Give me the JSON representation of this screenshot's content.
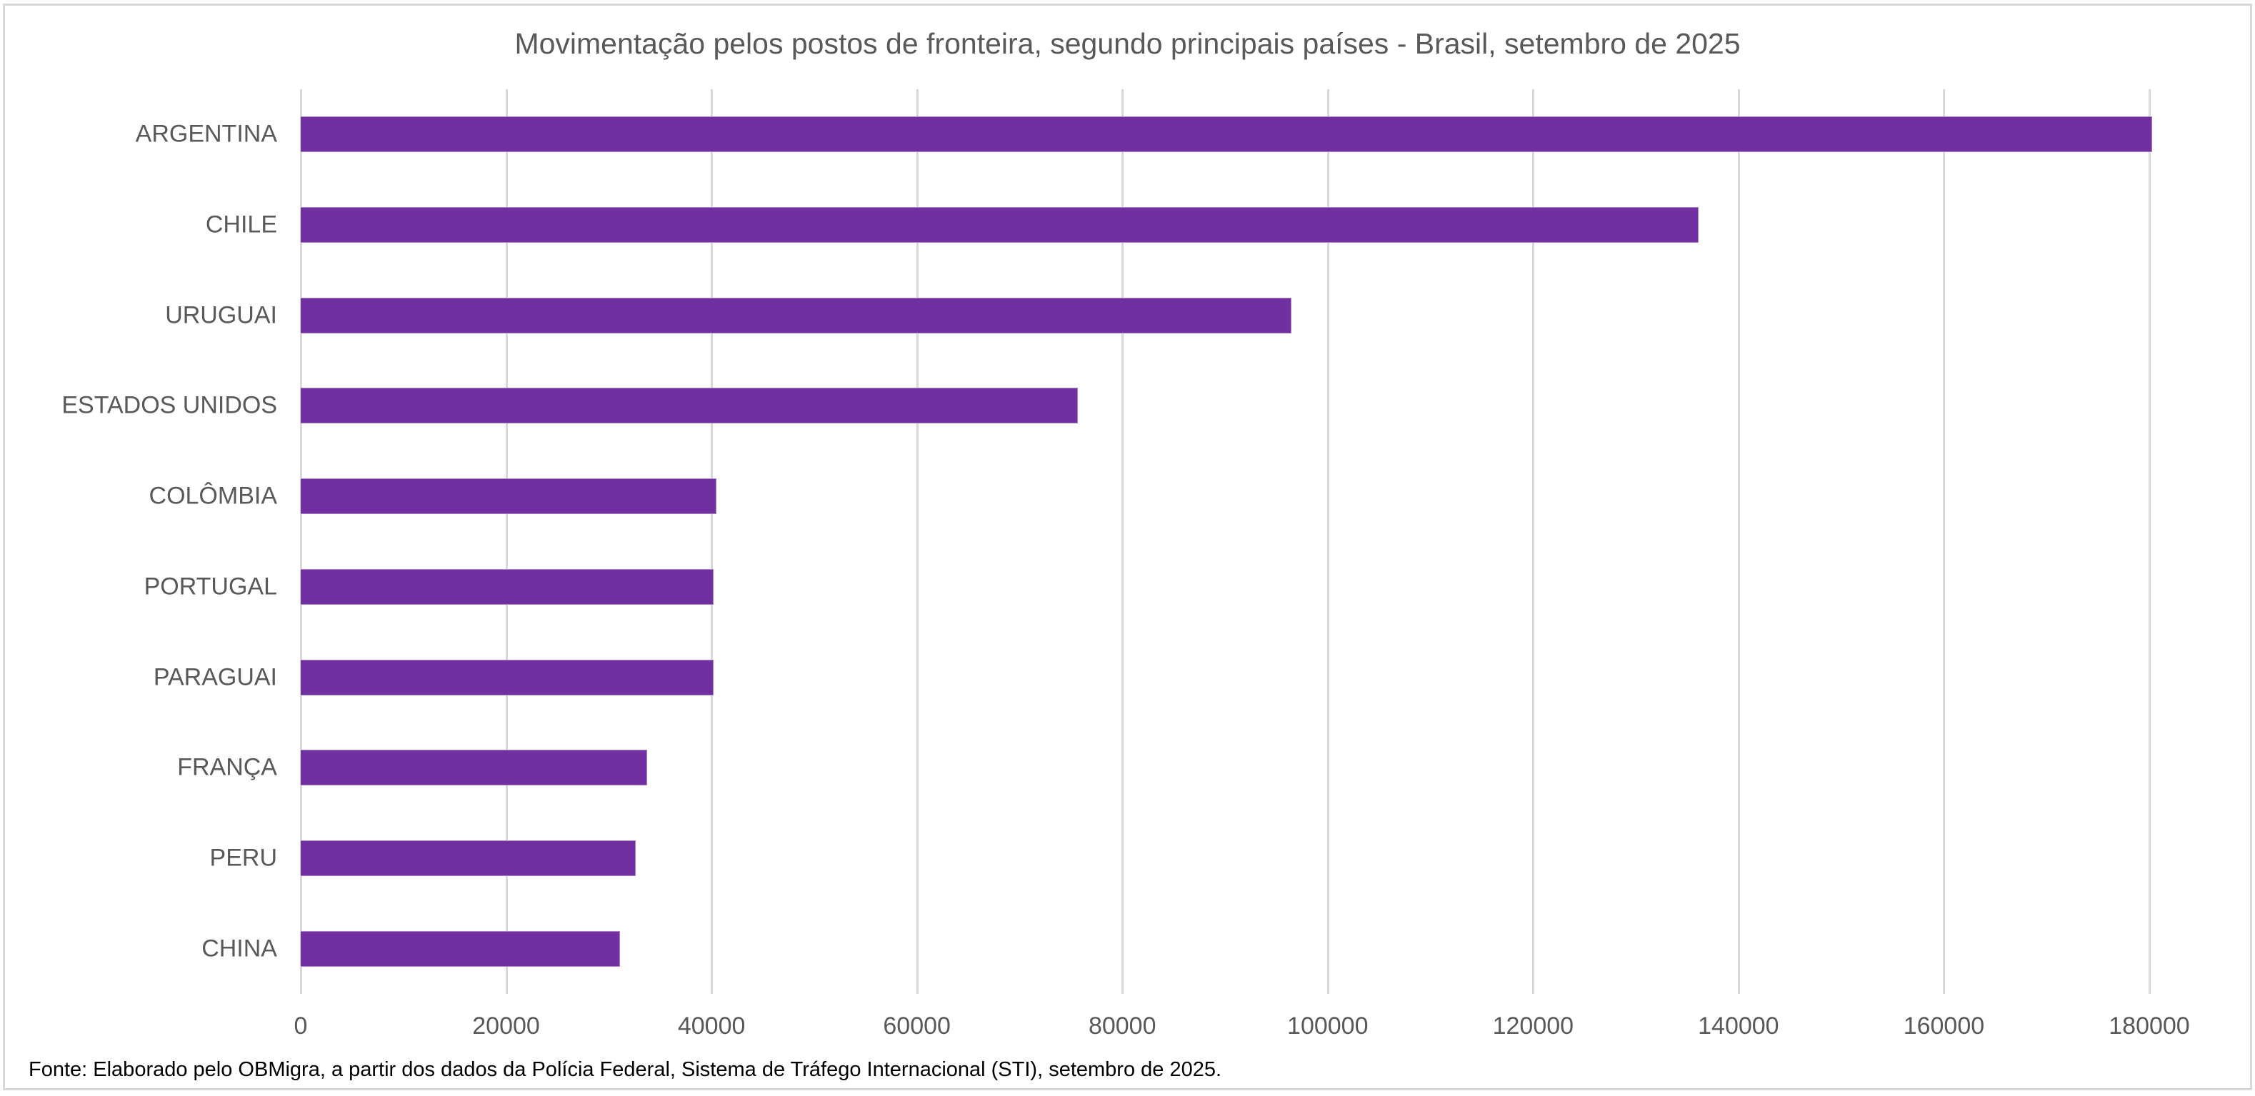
{
  "chart": {
    "title": "Movimentação pelos postos de fronteira, segundo principais países - Brasil, setembro de 2025",
    "footer": "Fonte: Elaborado pelo OBMigra, a partir dos dados da Polícia Federal, Sistema de Tráfego Internacional (STI), setembro de 2025.",
    "bar_color": "#7030a0",
    "gridline_color": "#d9d9d9",
    "text_color": "#595959",
    "x_ticks": [
      "0",
      "20000",
      "40000",
      "60000",
      "80000",
      "100000",
      "120000",
      "140000",
      "160000",
      "180000"
    ]
  },
  "chart_data": {
    "type": "bar",
    "orientation": "horizontal",
    "title": "Movimentação pelos postos de fronteira, segundo principais países - Brasil, setembro de 2025",
    "categories": [
      "ARGENTINA",
      "CHILE",
      "URUGUAI",
      "ESTADOS UNIDOS",
      "COLÔMBIA",
      "PORTUGAL",
      "PARAGUAI",
      "FRANÇA",
      "PERU",
      "CHINA"
    ],
    "values": [
      180300,
      136100,
      96500,
      75700,
      40500,
      40200,
      40200,
      33700,
      32600,
      31100
    ],
    "xlabel": "",
    "ylabel": "",
    "xlim": [
      0,
      180000
    ],
    "x_ticks": [
      0,
      20000,
      40000,
      60000,
      80000,
      100000,
      120000,
      140000,
      160000,
      180000
    ],
    "grid": "vertical",
    "legend": "none",
    "annotations": [
      "Fonte: Elaborado pelo OBMigra, a partir dos dados da Polícia Federal, Sistema de Tráfego Internacional (STI), setembro de 2025."
    ]
  }
}
